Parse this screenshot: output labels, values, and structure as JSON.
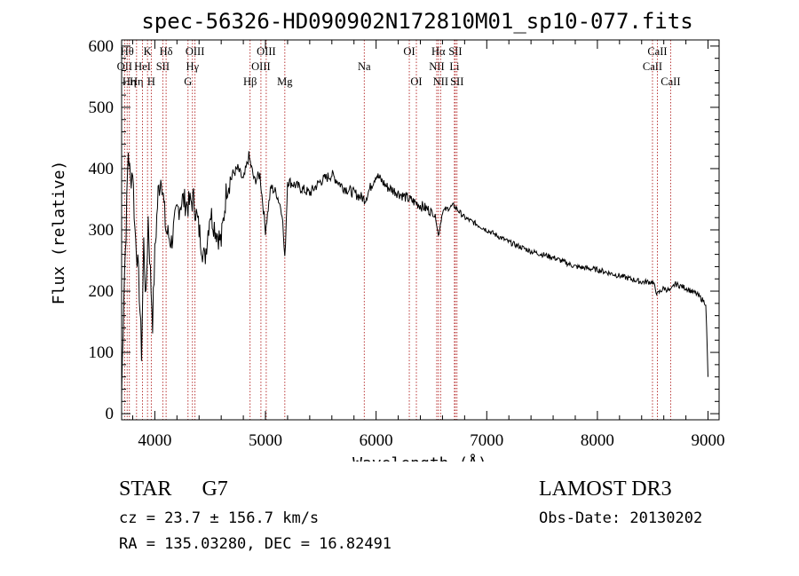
{
  "chart_data": {
    "type": "line",
    "title": "spec-56326-HD090902N172810M01_sp10-077.fits",
    "xlabel": "Wavelength (Å)",
    "ylabel": "Flux (relative)",
    "xlim": [
      3700,
      9100
    ],
    "ylim": [
      -10,
      610
    ],
    "xticks": [
      4000,
      5000,
      6000,
      7000,
      8000,
      9000
    ],
    "yticks": [
      0,
      100,
      200,
      300,
      400,
      500,
      600
    ],
    "grid": false,
    "colors": {
      "spectrum": "#000000",
      "lines": "#b22222"
    },
    "series": [
      {
        "name": "spectrum",
        "x": [
          3700,
          3720,
          3740,
          3760,
          3780,
          3800,
          3820,
          3840,
          3860,
          3880,
          3900,
          3920,
          3940,
          3960,
          3980,
          4000,
          4030,
          4060,
          4100,
          4150,
          4200,
          4250,
          4300,
          4350,
          4400,
          4450,
          4500,
          4550,
          4600,
          4650,
          4700,
          4750,
          4800,
          4850,
          4900,
          4950,
          5000,
          5050,
          5100,
          5150,
          5175,
          5200,
          5300,
          5400,
          5500,
          5600,
          5700,
          5800,
          5900,
          6000,
          6100,
          6200,
          6300,
          6400,
          6500,
          6540,
          6563,
          6600,
          6700,
          6800,
          6900,
          7000,
          7200,
          7400,
          7600,
          7800,
          8000,
          8200,
          8400,
          8500,
          8542,
          8600,
          8662,
          8700,
          8800,
          8900,
          8980,
          9000
        ],
        "y": [
          30,
          200,
          300,
          430,
          380,
          400,
          300,
          260,
          200,
          100,
          280,
          180,
          320,
          230,
          150,
          260,
          360,
          390,
          300,
          280,
          330,
          350,
          340,
          350,
          300,
          250,
          330,
          300,
          280,
          370,
          390,
          400,
          380,
          420,
          380,
          390,
          300,
          370,
          360,
          330,
          250,
          380,
          370,
          360,
          380,
          390,
          370,
          360,
          350,
          390,
          370,
          360,
          350,
          340,
          330,
          320,
          290,
          330,
          340,
          320,
          310,
          300,
          280,
          265,
          255,
          240,
          235,
          225,
          215,
          215,
          195,
          205,
          200,
          212,
          205,
          195,
          180,
          60
        ]
      }
    ],
    "spectral_lines": [
      {
        "x": 3727,
        "label": "OII",
        "row": 2
      },
      {
        "x": 3750,
        "label": "Hθ",
        "row": 1
      },
      {
        "x": 3770,
        "label": "Hη",
        "row": 3
      },
      {
        "x": 3835,
        "label": "Hη",
        "row": 3
      },
      {
        "x": 3889,
        "label": "HeI",
        "row": 2
      },
      {
        "x": 3934,
        "label": "K",
        "row": 1
      },
      {
        "x": 3968,
        "label": "H",
        "row": 3
      },
      {
        "x": 4072,
        "label": "SII",
        "row": 2
      },
      {
        "x": 4102,
        "label": "Hδ",
        "row": 1
      },
      {
        "x": 4300,
        "label": "G",
        "row": 3
      },
      {
        "x": 4340,
        "label": "Hγ",
        "row": 2
      },
      {
        "x": 4363,
        "label": "OIII",
        "row": 1
      },
      {
        "x": 4861,
        "label": "Hβ",
        "row": 3
      },
      {
        "x": 4959,
        "label": "OIII",
        "row": 2
      },
      {
        "x": 5007,
        "label": "OIII",
        "row": 1
      },
      {
        "x": 5175,
        "label": "Mg",
        "row": 3
      },
      {
        "x": 5893,
        "label": "Na",
        "row": 2
      },
      {
        "x": 6300,
        "label": "OI",
        "row": 1
      },
      {
        "x": 6364,
        "label": "OI",
        "row": 3
      },
      {
        "x": 6548,
        "label": "NII",
        "row": 2
      },
      {
        "x": 6563,
        "label": "Hα",
        "row": 1
      },
      {
        "x": 6583,
        "label": "NII",
        "row": 3
      },
      {
        "x": 6708,
        "label": "Li",
        "row": 2
      },
      {
        "x": 6716,
        "label": "SII",
        "row": 1
      },
      {
        "x": 6731,
        "label": "SII",
        "row": 3
      },
      {
        "x": 8498,
        "label": "CaII",
        "row": 2
      },
      {
        "x": 8542,
        "label": "CaII",
        "row": 1
      },
      {
        "x": 8662,
        "label": "CaII",
        "row": 3
      }
    ]
  },
  "info": {
    "class_label": "STAR",
    "subclass": "G7",
    "cz": "cz = 23.7 ± 156.7 km/s",
    "coords": "RA = 135.03280, DEC =  16.82491",
    "survey": "LAMOST DR3",
    "obs_date": "Obs-Date: 20130202"
  }
}
